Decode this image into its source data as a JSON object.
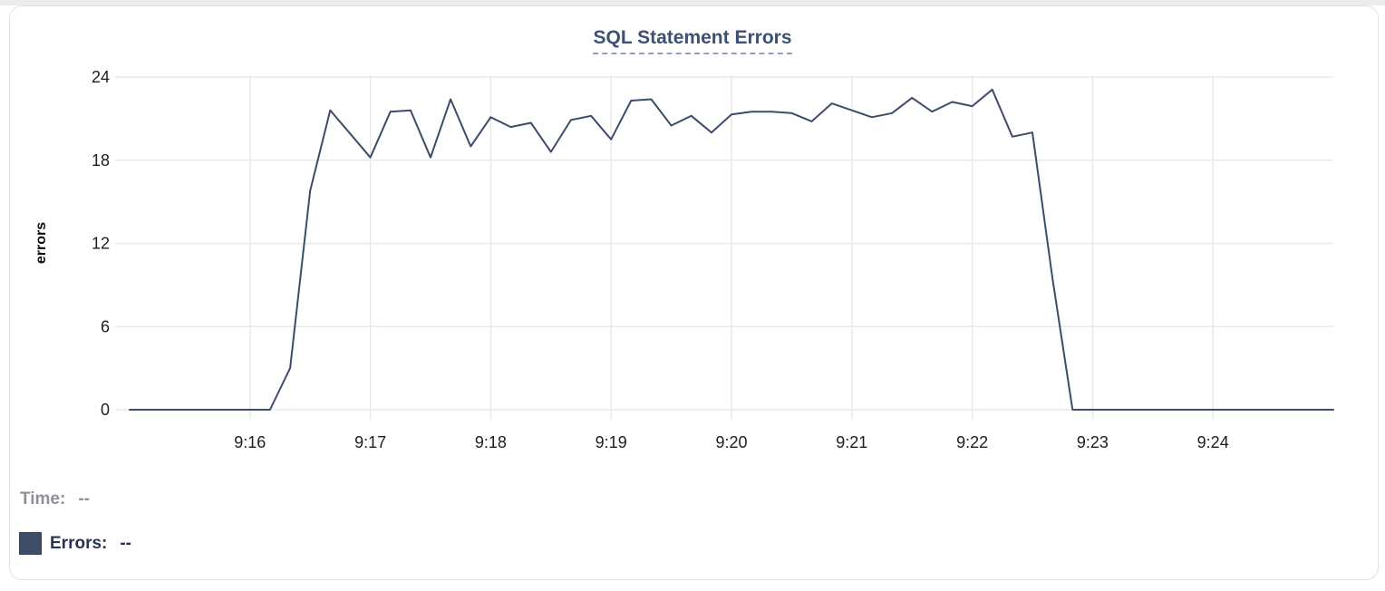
{
  "chart_data": {
    "type": "line",
    "title": "SQL Statement Errors",
    "xlabel": "",
    "ylabel": "errors",
    "ylim": [
      0,
      24
    ],
    "y_ticks": [
      0,
      6,
      12,
      18,
      24
    ],
    "x_ticks": [
      "9:16",
      "9:17",
      "9:18",
      "9:19",
      "9:20",
      "9:21",
      "9:22",
      "9:23",
      "9:24"
    ],
    "x_start": "9:15:00",
    "x_end": "9:25:00",
    "sample_interval_seconds": 10,
    "grid": true,
    "legend_position": "bottom-left",
    "series": [
      {
        "name": "Errors",
        "color": "#3d4c69",
        "values": [
          0,
          0,
          0,
          0,
          0,
          0,
          0,
          0,
          3,
          15.8,
          21.6,
          19.9,
          18.2,
          21.5,
          21.6,
          18.2,
          22.4,
          19,
          21.1,
          20.4,
          20.7,
          18.6,
          20.9,
          21.2,
          19.5,
          22.3,
          22.4,
          20.5,
          21.2,
          20,
          21.3,
          21.5,
          21.5,
          21.4,
          20.8,
          22.1,
          21.6,
          21.1,
          21.4,
          22.5,
          21.5,
          22.2,
          21.9,
          23.1,
          19.7,
          20,
          9.5,
          0,
          0,
          0,
          0,
          0,
          0,
          0,
          0,
          0,
          0,
          0,
          0,
          0,
          0
        ]
      }
    ]
  },
  "hover_readout": {
    "time_label": "Time:",
    "time_value": "--",
    "errors_label": "Errors:",
    "errors_value": "--"
  },
  "colors": {
    "series_line": "#3d4c69",
    "title_text": "#3d5174",
    "title_underline": "#8fa0c4",
    "gridline": "#e9e9e9",
    "tick_text": "#1d1d1f",
    "time_readout_text": "#8d9199",
    "errors_readout_text": "#28334f",
    "card_border": "#e1e1e3",
    "page_edge_strip": "#ececee"
  }
}
